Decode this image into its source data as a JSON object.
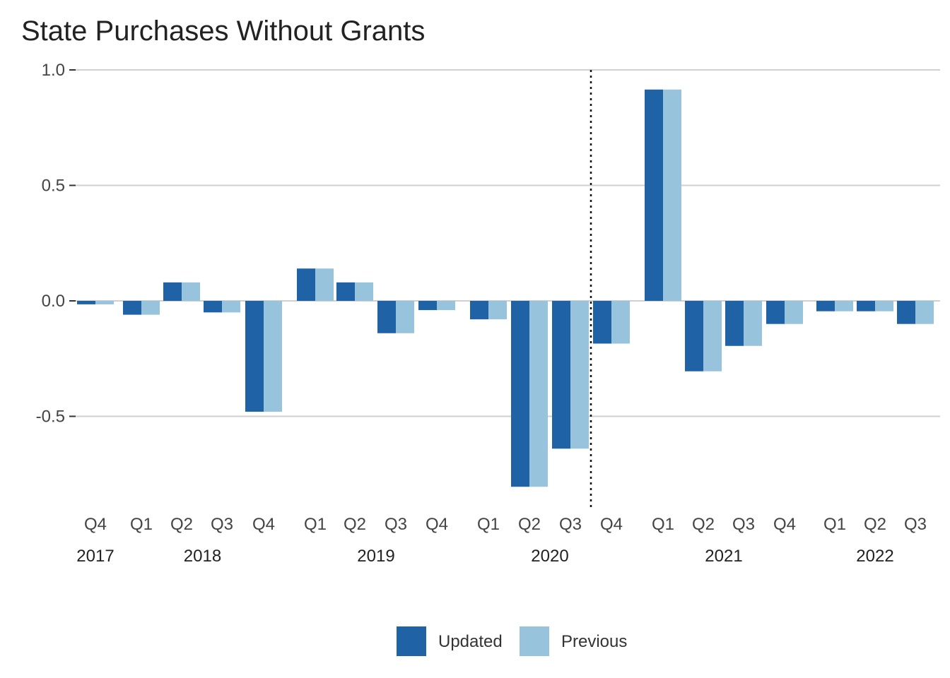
{
  "title": "State Purchases Without Grants",
  "chart_data": {
    "type": "bar",
    "title": "State Purchases Without Grants",
    "xlabel": "",
    "ylabel": "",
    "ylim": [
      -0.88,
      1.0
    ],
    "yticks": [
      1.0,
      0.5,
      0.0,
      -0.5
    ],
    "ytick_labels": [
      "1.0",
      "0.5",
      "0.0",
      "-0.5"
    ],
    "grid": true,
    "legend_position": "bottom",
    "categories": [
      "Q4",
      "Q1",
      "Q2",
      "Q3",
      "Q4",
      "Q1",
      "Q2",
      "Q3",
      "Q4",
      "Q1",
      "Q2",
      "Q3",
      "Q4",
      "Q1",
      "Q2",
      "Q3",
      "Q4",
      "Q1",
      "Q2",
      "Q3"
    ],
    "category_years": [
      "2017",
      "2018",
      "2018",
      "2018",
      "2018",
      "2019",
      "2019",
      "2019",
      "2019",
      "2020",
      "2020",
      "2020",
      "2020",
      "2021",
      "2021",
      "2021",
      "2021",
      "2022",
      "2022",
      "2022"
    ],
    "years": [
      "2017",
      "2018",
      "2019",
      "2020",
      "2021",
      "2022"
    ],
    "divider_after_category": 11,
    "series": [
      {
        "name": "Updated",
        "color": "#1f63a6",
        "values": [
          -0.015,
          -0.06,
          0.08,
          -0.05,
          -0.48,
          0.14,
          0.08,
          -0.14,
          -0.04,
          -0.08,
          -0.805,
          -0.64,
          -0.185,
          0.915,
          -0.305,
          -0.195,
          -0.1,
          -0.045,
          -0.045,
          -0.1
        ]
      },
      {
        "name": "Previous",
        "color": "#97c3dd",
        "values": [
          -0.015,
          -0.06,
          0.08,
          -0.05,
          -0.48,
          0.14,
          0.08,
          -0.14,
          -0.04,
          -0.08,
          -0.805,
          -0.64,
          -0.185,
          0.915,
          -0.305,
          -0.195,
          -0.1,
          -0.045,
          -0.045,
          -0.1
        ]
      }
    ]
  }
}
